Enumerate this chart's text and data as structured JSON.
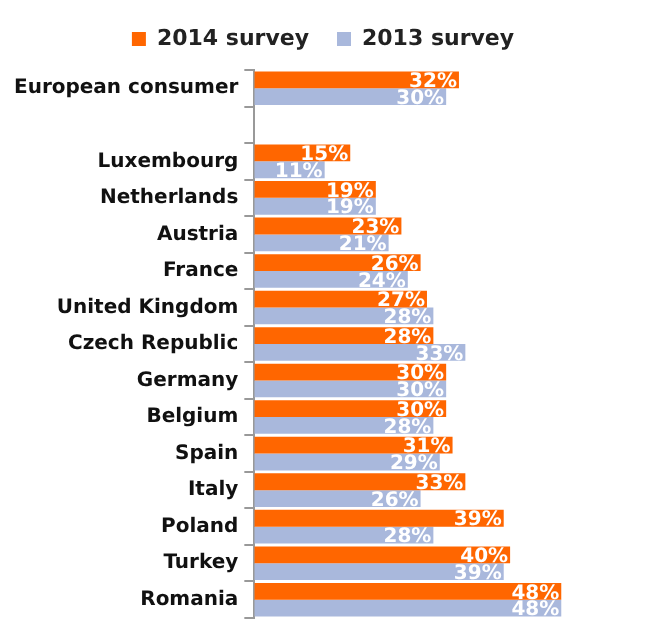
{
  "chart_data": {
    "type": "bar",
    "orientation": "horizontal",
    "categories": [
      "European consumer",
      null,
      "Luxembourg",
      "Netherlands",
      "Austria",
      "France",
      "United Kingdom",
      "Czech Republic",
      "Germany",
      "Belgium",
      "Spain",
      "Italy",
      "Poland",
      "Turkey",
      "Romania"
    ],
    "series": [
      {
        "name": "2014 survey",
        "color": "#ff6600",
        "values": [
          32,
          null,
          15,
          19,
          23,
          26,
          27,
          28,
          30,
          30,
          31,
          33,
          39,
          40,
          48
        ],
        "value_labels": [
          "32%",
          null,
          "15%",
          "19%",
          "23%",
          "26%",
          "27%",
          "28%",
          "30%",
          "30%",
          "31%",
          "33%",
          "39%",
          "40%",
          "48%"
        ]
      },
      {
        "name": "2013 survey",
        "color": "#a9b8dc",
        "values": [
          30,
          null,
          11,
          19,
          21,
          24,
          28,
          33,
          30,
          28,
          29,
          26,
          28,
          39,
          48
        ],
        "value_labels": [
          "30%",
          null,
          "11%",
          "19%",
          "21%",
          "24%",
          "28%",
          "33%",
          "30%",
          "28%",
          "29%",
          "26%",
          "28%",
          "39%",
          "48%"
        ]
      }
    ],
    "legend": "top",
    "grid": false,
    "tick_labels": "y"
  }
}
